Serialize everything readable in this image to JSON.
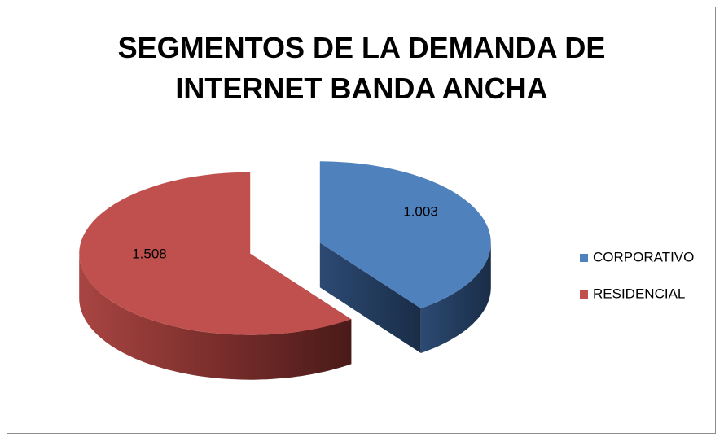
{
  "chart_data": {
    "type": "pie3d",
    "title": "SEGMENTOS DE LA DEMANDA DE INTERNET BANDA ANCHA",
    "categories": [
      "CORPORATIVO",
      "RESIDENCIAL"
    ],
    "values": [
      1003,
      1508
    ],
    "value_labels": [
      "1.003",
      "1.508"
    ],
    "colors": [
      "#4f81bd",
      "#c0504d"
    ],
    "legend": "right"
  }
}
